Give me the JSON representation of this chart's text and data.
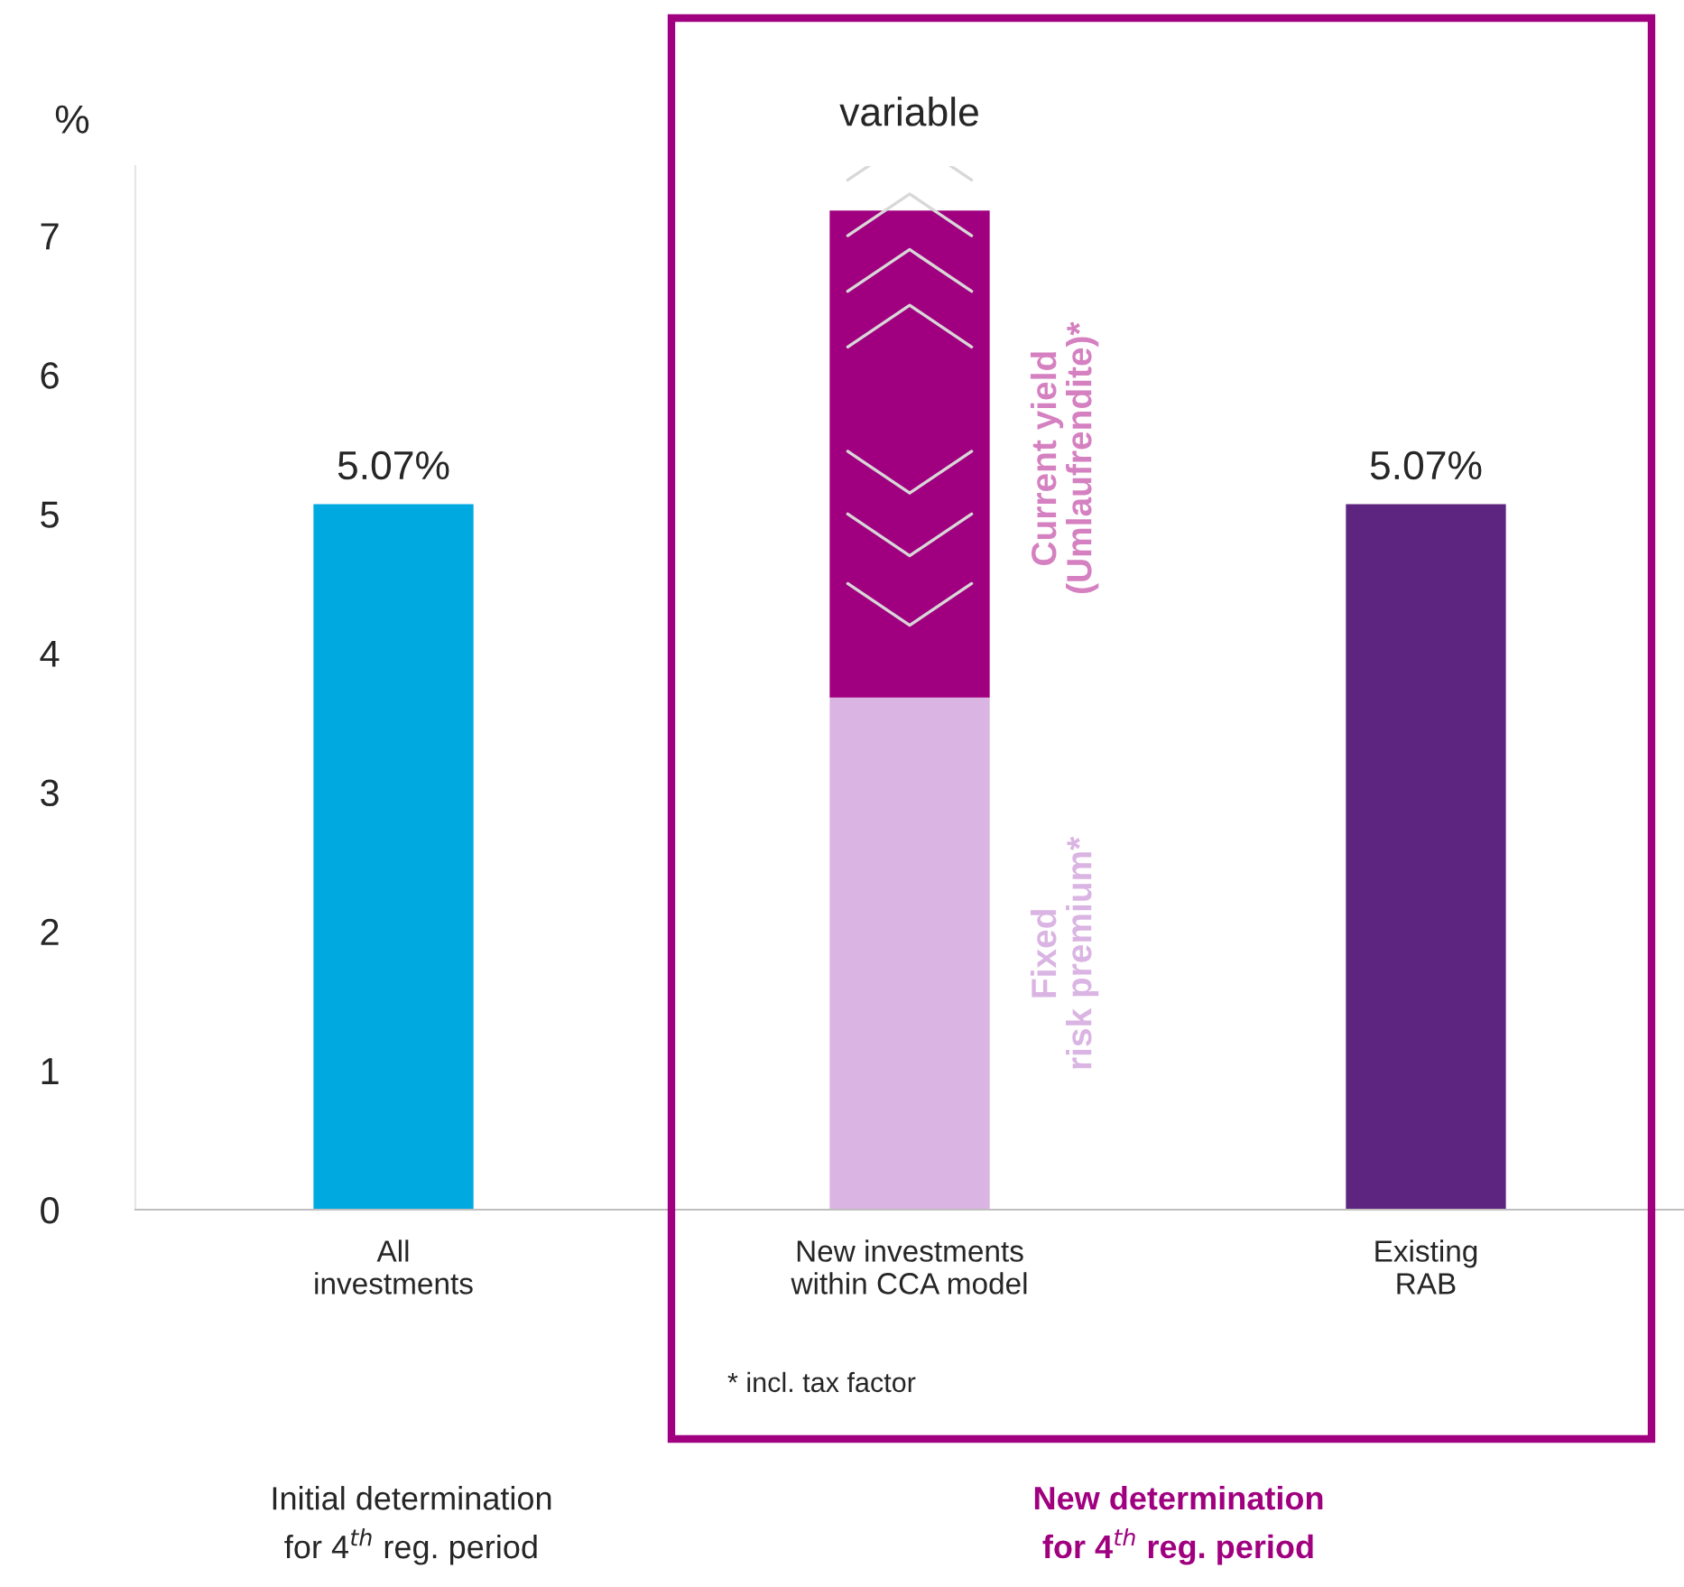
{
  "chart_data": {
    "type": "bar",
    "stacked": true,
    "ylabel": "%",
    "categories": [
      "All\ninvestments",
      "New investments\nwithin CCA model",
      "Existing\nRAB"
    ],
    "series": [
      {
        "colors": [
          "#00a9e0",
          "#dab4e3",
          "#5e2580"
        ],
        "values": [
          5.07,
          3.68,
          5.07
        ],
        "value_labels": [
          "5.07%",
          null,
          "5.07%"
        ]
      },
      {
        "color": "#a0007f",
        "values": [
          null,
          3.5,
          null
        ]
      }
    ],
    "totals": [
      null,
      "variable",
      null
    ],
    "ylim": [
      0,
      7.5
    ],
    "yticks": [
      0,
      1,
      2,
      3,
      4,
      5,
      6,
      7
    ],
    "grid": false,
    "legend": false,
    "annotations": [
      "* incl. tax factor",
      "Initial determination\nfor 4$^{th}$ reg. period",
      "New determination\nfor 4$^{th}$ reg. period",
      "Fixed\nrisk premium*",
      "Current yield\n(Umlaufrendite)*"
    ]
  }
}
